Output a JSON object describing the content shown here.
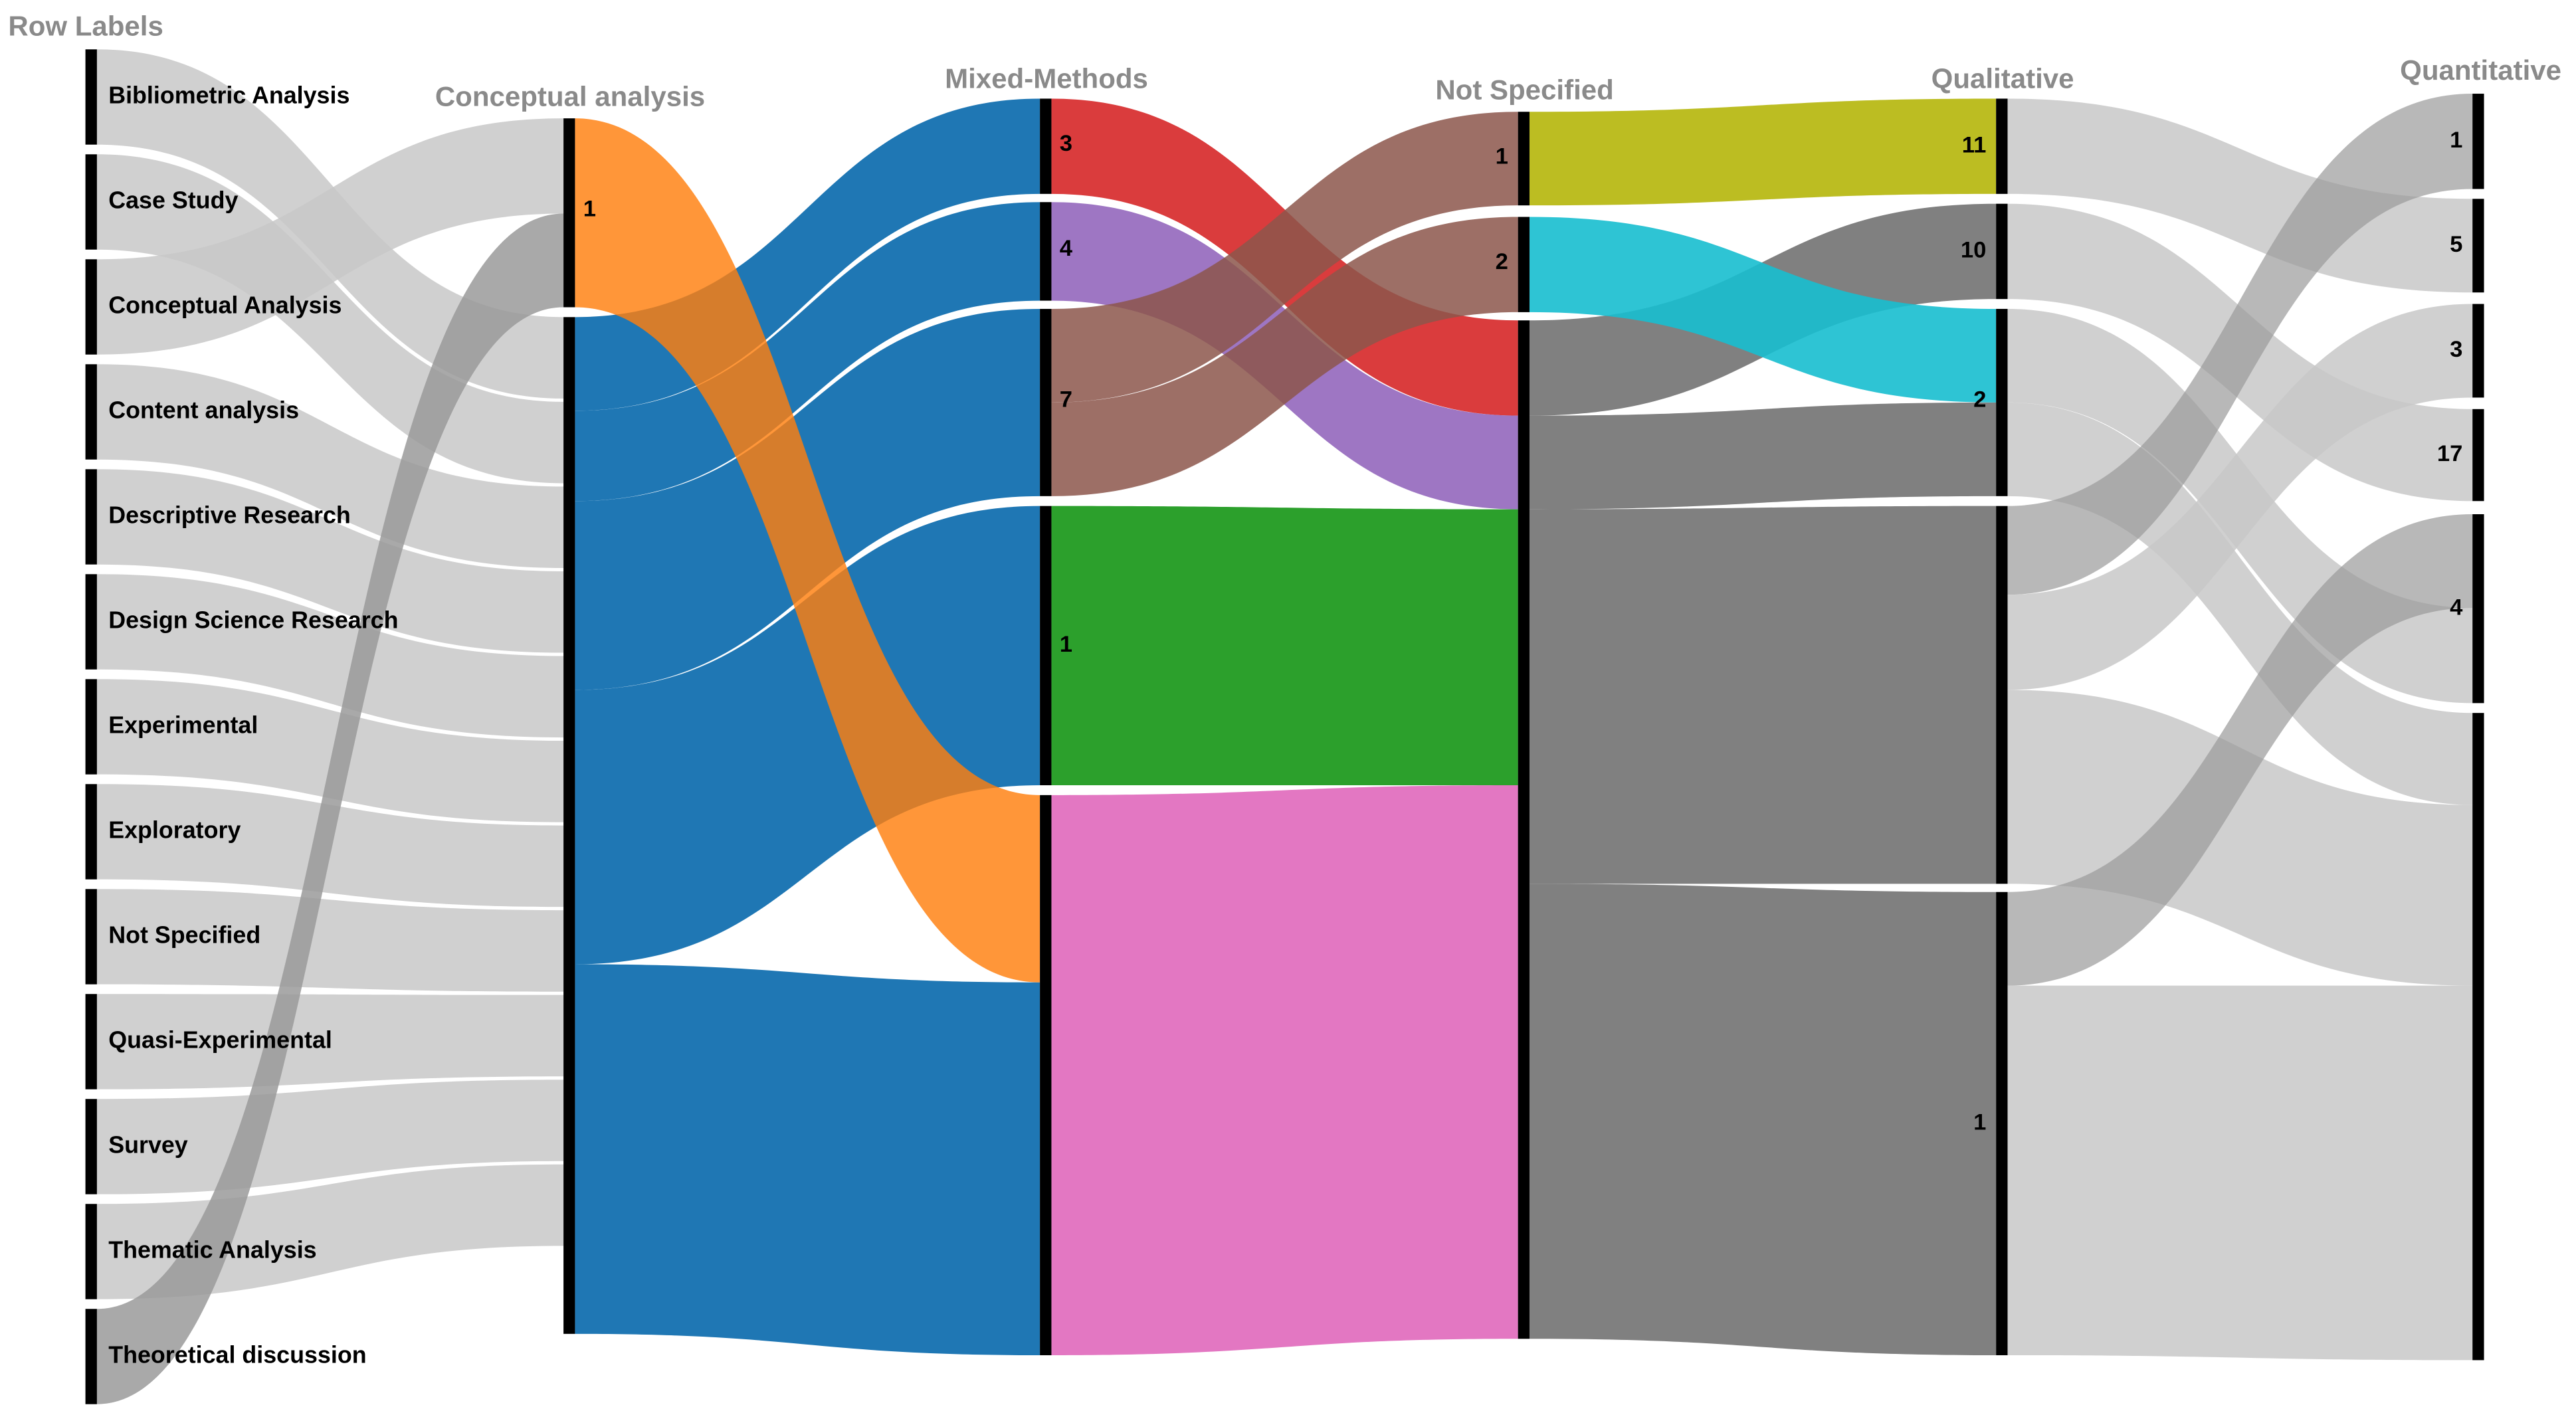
{
  "columns": [
    {
      "title": "Row Labels",
      "nodes": [
        "Bibliometric Analysis",
        "Case Study",
        "Conceptual Analysis",
        "Content analysis",
        "Descriptive Research",
        "Design Science Research",
        "Experimental",
        "Exploratory",
        "Not Specified",
        "Quasi-Experimental",
        "Survey",
        "Thematic Analysis",
        "Theoretical discussion"
      ]
    },
    {
      "title": "Conceptual analysis",
      "nodes": [
        "1",
        null
      ]
    },
    {
      "title": "Mixed-Methods",
      "nodes": [
        "3",
        "4",
        "7",
        "1",
        null
      ]
    },
    {
      "title": "Not Specified",
      "nodes": [
        "1",
        "2",
        null
      ]
    },
    {
      "title": "Qualitative",
      "nodes": [
        "11",
        "10",
        "2",
        null,
        "1"
      ]
    },
    {
      "title": "Quantitative",
      "nodes": [
        "1",
        "5",
        "3",
        "17",
        "4",
        null
      ]
    }
  ]
}
